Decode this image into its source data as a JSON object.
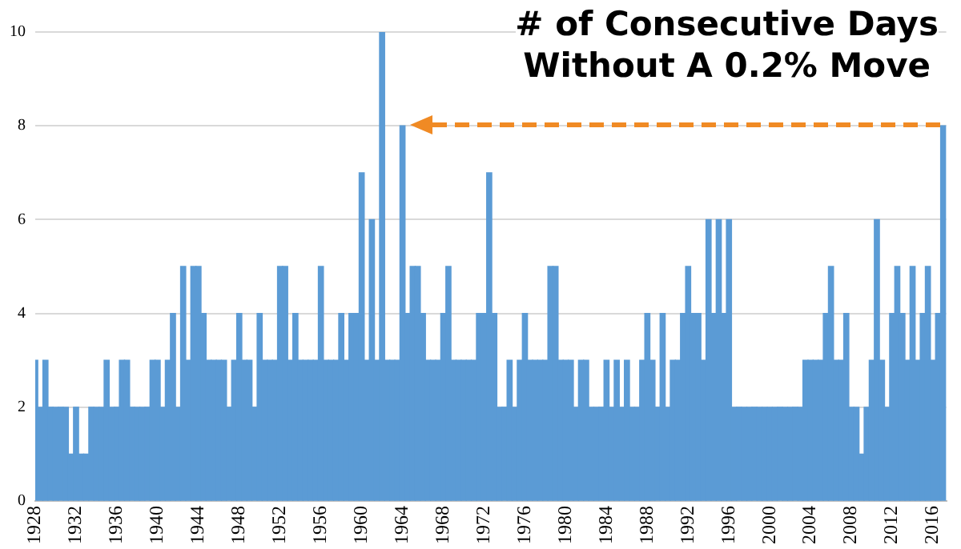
{
  "chart_data": {
    "type": "bar",
    "title": "# of Consecutive Days\nWithout A 0.2% Move",
    "x": [
      1928,
      1928.5,
      1929,
      1929.5,
      1930,
      1930.5,
      1931,
      1931.5,
      1932,
      1932.5,
      1933,
      1933.5,
      1934,
      1934.5,
      1935,
      1935.5,
      1936,
      1936.5,
      1937,
      1937.5,
      1938,
      1938.5,
      1939,
      1939.5,
      1940,
      1940.5,
      1941,
      1941.5,
      1942,
      1942.5,
      1943,
      1943.5,
      1944,
      1944.5,
      1945,
      1945.5,
      1946,
      1946.5,
      1947,
      1947.5,
      1948,
      1948.5,
      1949,
      1949.5,
      1950,
      1950.5,
      1951,
      1951.5,
      1952,
      1952.5,
      1953,
      1953.5,
      1954,
      1954.5,
      1955,
      1955.5,
      1956,
      1956.5,
      1957,
      1957.5,
      1958,
      1958.5,
      1959,
      1959.5,
      1960,
      1960.5,
      1961,
      1961.5,
      1962,
      1962.5,
      1963,
      1963.5,
      1964,
      1964.5,
      1965,
      1965.5,
      1966,
      1966.5,
      1967,
      1967.5,
      1968,
      1968.5,
      1969,
      1969.5,
      1970,
      1970.5,
      1971,
      1971.5,
      1972,
      1972.5,
      1973,
      1973.5,
      1974,
      1974.5,
      1975,
      1975.5,
      1976,
      1976.5,
      1977,
      1977.5,
      1978,
      1978.5,
      1979,
      1979.5,
      1980,
      1980.5,
      1981,
      1981.5,
      1982,
      1982.5,
      1983,
      1983.5,
      1984,
      1984.5,
      1985,
      1985.5,
      1986,
      1986.5,
      1987,
      1987.5,
      1988,
      1988.5,
      1989,
      1989.5,
      1990,
      1990.5,
      1991,
      1991.5,
      1992,
      1992.5,
      1993,
      1993.5,
      1994,
      1994.5,
      1995,
      1995.5,
      1996,
      1996.5,
      1997,
      1997.5,
      1998,
      1998.5,
      1999,
      1999.5,
      2000,
      2000.5,
      2001,
      2001.5,
      2002,
      2002.5,
      2003,
      2003.5,
      2004,
      2004.5,
      2005,
      2005.5,
      2006,
      2006.5,
      2007,
      2007.5,
      2008,
      2008.5,
      2009,
      2009.5,
      2010,
      2010.5,
      2011,
      2011.5,
      2012,
      2012.5,
      2013,
      2013.5,
      2014,
      2014.5,
      2015,
      2015.5,
      2016,
      2016.5,
      2017
    ],
    "values": [
      3,
      2,
      3,
      2,
      2,
      2,
      2,
      1,
      2,
      1,
      1,
      2,
      2,
      2,
      3,
      2,
      2,
      3,
      3,
      2,
      2,
      2,
      2,
      3,
      3,
      2,
      3,
      4,
      2,
      5,
      3,
      5,
      5,
      4,
      3,
      3,
      3,
      3,
      2,
      3,
      4,
      3,
      3,
      2,
      4,
      3,
      3,
      3,
      5,
      5,
      3,
      4,
      3,
      3,
      3,
      3,
      5,
      3,
      3,
      3,
      4,
      3,
      4,
      4,
      7,
      3,
      6,
      3,
      10,
      3,
      3,
      3,
      8,
      4,
      5,
      5,
      4,
      3,
      3,
      3,
      4,
      5,
      3,
      3,
      3,
      3,
      3,
      4,
      4,
      7,
      4,
      2,
      2,
      3,
      2,
      3,
      4,
      3,
      3,
      3,
      3,
      5,
      5,
      3,
      3,
      3,
      2,
      3,
      3,
      2,
      2,
      2,
      3,
      2,
      3,
      2,
      3,
      2,
      2,
      3,
      4,
      3,
      2,
      4,
      2,
      3,
      3,
      4,
      5,
      4,
      4,
      3,
      6,
      4,
      6,
      4,
      6,
      2,
      2,
      2,
      2,
      2,
      2,
      2,
      2,
      2,
      2,
      2,
      2,
      2,
      2,
      3,
      3,
      3,
      3,
      4,
      5,
      3,
      3,
      4,
      2,
      2,
      1,
      2,
      3,
      6,
      3,
      2,
      4,
      5,
      4,
      3,
      5,
      3,
      4,
      5,
      3,
      4,
      8
    ],
    "color": "#5b9bd5",
    "xlim": [
      1928,
      2017.3
    ],
    "xticks": [
      1928,
      1932,
      1936,
      1940,
      1944,
      1948,
      1952,
      1956,
      1960,
      1964,
      1968,
      1972,
      1976,
      1980,
      1984,
      1988,
      1992,
      1996,
      2000,
      2004,
      2008,
      2012,
      2016
    ],
    "ylim": [
      0,
      10
    ],
    "yticks": [
      0,
      2,
      4,
      6,
      8,
      10
    ],
    "grid": "y"
  }
}
